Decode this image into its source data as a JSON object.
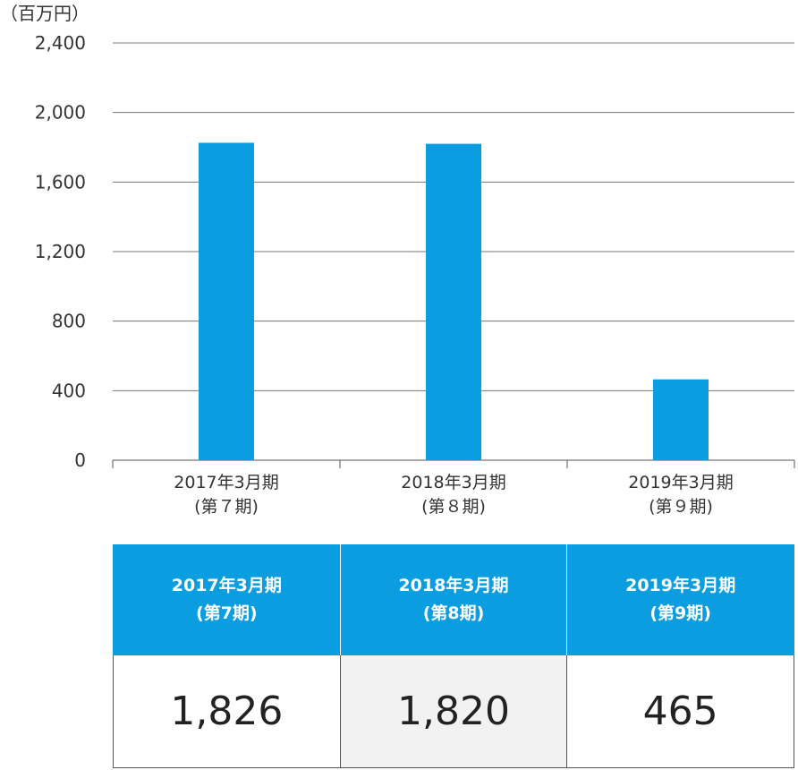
{
  "chart_data": {
    "type": "bar",
    "unit_label": "（百万円）",
    "categories": [
      [
        "2017年3月期",
        "(第７期)"
      ],
      [
        "2018年3月期",
        "(第８期)"
      ],
      [
        "2019年3月期",
        "(第９期)"
      ]
    ],
    "values": [
      1826,
      1820,
      465
    ],
    "ylim": [
      0,
      2400
    ],
    "yticks": [
      "0",
      "400",
      "800",
      "1,200",
      "1,600",
      "2,000",
      "2,400"
    ],
    "grid": true,
    "bar_color": "#0a9ee0"
  },
  "table": {
    "columns": [
      {
        "line1": "2017年3月期",
        "line2": "(第7期)"
      },
      {
        "line1": "2018年3月期",
        "line2": "(第8期)"
      },
      {
        "line1": "2019年3月期",
        "line2": "(第9期)"
      }
    ],
    "values": [
      "1,826",
      "1,820",
      "465"
    ]
  }
}
